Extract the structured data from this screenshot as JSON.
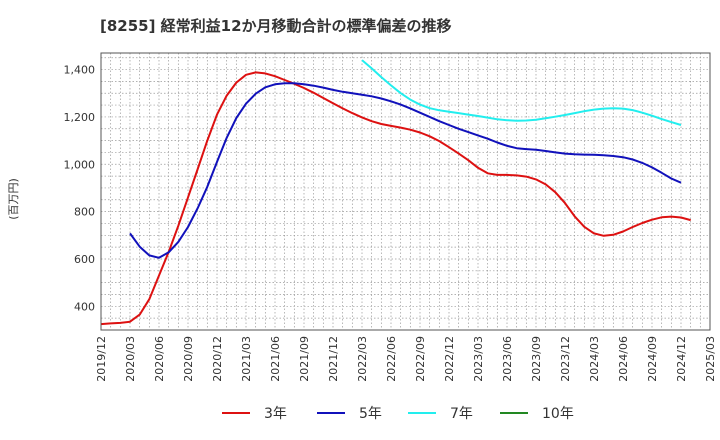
{
  "chart_data": {
    "type": "line",
    "title": "[8255]  経常利益12か月移動合計の標準偏差の推移",
    "ylabel": "(百万円)",
    "ylim": [
      300,
      1470
    ],
    "yticks": [
      400,
      600,
      800,
      1000,
      1200,
      1400
    ],
    "ytick_labels": [
      "400",
      "600",
      "800",
      "1,000",
      "1,200",
      "1,400"
    ],
    "xlim": [
      "2019-12",
      "2025-03"
    ],
    "xticks": [
      "2019/12",
      "2020/03",
      "2020/06",
      "2020/09",
      "2020/12",
      "2021/03",
      "2021/06",
      "2021/09",
      "2021/12",
      "2022/03",
      "2022/06",
      "2022/09",
      "2022/12",
      "2023/03",
      "2023/06",
      "2023/09",
      "2023/12",
      "2024/03",
      "2024/06",
      "2024/09",
      "2024/12",
      "2025/03"
    ],
    "grid": true,
    "legend_position": "bottom",
    "series": [
      {
        "name": "3年",
        "color": "#dd1111",
        "points": [
          [
            "2019-12",
            325
          ],
          [
            "2020-01",
            328
          ],
          [
            "2020-02",
            330
          ],
          [
            "2020-03",
            335
          ],
          [
            "2020-04",
            365
          ],
          [
            "2020-05",
            430
          ],
          [
            "2020-06",
            530
          ],
          [
            "2020-07",
            630
          ],
          [
            "2020-08",
            740
          ],
          [
            "2020-09",
            860
          ],
          [
            "2020-10",
            980
          ],
          [
            "2020-11",
            1100
          ],
          [
            "2020-12",
            1210
          ],
          [
            "2021-01",
            1290
          ],
          [
            "2021-02",
            1345
          ],
          [
            "2021-03",
            1378
          ],
          [
            "2021-04",
            1388
          ],
          [
            "2021-05",
            1384
          ],
          [
            "2021-06",
            1372
          ],
          [
            "2021-07",
            1356
          ],
          [
            "2021-08",
            1340
          ],
          [
            "2021-09",
            1322
          ],
          [
            "2021-10",
            1302
          ],
          [
            "2021-11",
            1280
          ],
          [
            "2021-12",
            1258
          ],
          [
            "2022-01",
            1236
          ],
          [
            "2022-02",
            1216
          ],
          [
            "2022-03",
            1198
          ],
          [
            "2022-04",
            1182
          ],
          [
            "2022-05",
            1170
          ],
          [
            "2022-06",
            1162
          ],
          [
            "2022-07",
            1155
          ],
          [
            "2022-08",
            1146
          ],
          [
            "2022-09",
            1134
          ],
          [
            "2022-10",
            1118
          ],
          [
            "2022-11",
            1098
          ],
          [
            "2022-12",
            1072
          ],
          [
            "2023-01",
            1045
          ],
          [
            "2023-02",
            1017
          ],
          [
            "2023-03",
            985
          ],
          [
            "2023-04",
            962
          ],
          [
            "2023-05",
            955
          ],
          [
            "2023-06",
            955
          ],
          [
            "2023-07",
            953
          ],
          [
            "2023-08",
            948
          ],
          [
            "2023-09",
            936
          ],
          [
            "2023-10",
            915
          ],
          [
            "2023-11",
            882
          ],
          [
            "2023-12",
            836
          ],
          [
            "2024-01",
            780
          ],
          [
            "2024-02",
            736
          ],
          [
            "2024-03",
            708
          ],
          [
            "2024-04",
            698
          ],
          [
            "2024-05",
            702
          ],
          [
            "2024-06",
            716
          ],
          [
            "2024-07",
            735
          ],
          [
            "2024-08",
            752
          ],
          [
            "2024-09",
            766
          ],
          [
            "2024-10",
            776
          ],
          [
            "2024-11",
            779
          ],
          [
            "2024-12",
            775
          ],
          [
            "2025-01",
            764
          ]
        ]
      },
      {
        "name": "5年",
        "color": "#1111bb",
        "points": [
          [
            "2020-03",
            708
          ],
          [
            "2020-04",
            652
          ],
          [
            "2020-05",
            615
          ],
          [
            "2020-06",
            605
          ],
          [
            "2020-07",
            628
          ],
          [
            "2020-08",
            672
          ],
          [
            "2020-09",
            735
          ],
          [
            "2020-10",
            815
          ],
          [
            "2020-11",
            905
          ],
          [
            "2020-12",
            1010
          ],
          [
            "2021-01",
            1112
          ],
          [
            "2021-02",
            1195
          ],
          [
            "2021-03",
            1256
          ],
          [
            "2021-04",
            1298
          ],
          [
            "2021-05",
            1325
          ],
          [
            "2021-06",
            1338
          ],
          [
            "2021-07",
            1342
          ],
          [
            "2021-08",
            1342
          ],
          [
            "2021-09",
            1338
          ],
          [
            "2021-10",
            1332
          ],
          [
            "2021-11",
            1324
          ],
          [
            "2021-12",
            1314
          ],
          [
            "2022-01",
            1306
          ],
          [
            "2022-02",
            1300
          ],
          [
            "2022-03",
            1294
          ],
          [
            "2022-04",
            1287
          ],
          [
            "2022-05",
            1278
          ],
          [
            "2022-06",
            1266
          ],
          [
            "2022-07",
            1252
          ],
          [
            "2022-08",
            1236
          ],
          [
            "2022-09",
            1218
          ],
          [
            "2022-10",
            1200
          ],
          [
            "2022-11",
            1182
          ],
          [
            "2022-12",
            1166
          ],
          [
            "2023-01",
            1150
          ],
          [
            "2023-02",
            1136
          ],
          [
            "2023-03",
            1122
          ],
          [
            "2023-04",
            1108
          ],
          [
            "2023-05",
            1092
          ],
          [
            "2023-06",
            1078
          ],
          [
            "2023-07",
            1068
          ],
          [
            "2023-08",
            1064
          ],
          [
            "2023-09",
            1061
          ],
          [
            "2023-10",
            1056
          ],
          [
            "2023-11",
            1050
          ],
          [
            "2023-12",
            1045
          ],
          [
            "2024-01",
            1042
          ],
          [
            "2024-02",
            1041
          ],
          [
            "2024-03",
            1040
          ],
          [
            "2024-04",
            1038
          ],
          [
            "2024-05",
            1035
          ],
          [
            "2024-06",
            1030
          ],
          [
            "2024-07",
            1020
          ],
          [
            "2024-08",
            1006
          ],
          [
            "2024-09",
            987
          ],
          [
            "2024-10",
            964
          ],
          [
            "2024-11",
            940
          ],
          [
            "2024-12",
            922
          ]
        ]
      },
      {
        "name": "7年",
        "color": "#22eeee",
        "points": [
          [
            "2022-03",
            1440
          ],
          [
            "2022-04",
            1405
          ],
          [
            "2022-05",
            1368
          ],
          [
            "2022-06",
            1333
          ],
          [
            "2022-07",
            1300
          ],
          [
            "2022-08",
            1273
          ],
          [
            "2022-09",
            1252
          ],
          [
            "2022-10",
            1237
          ],
          [
            "2022-11",
            1228
          ],
          [
            "2022-12",
            1222
          ],
          [
            "2023-01",
            1216
          ],
          [
            "2023-02",
            1210
          ],
          [
            "2023-03",
            1204
          ],
          [
            "2023-04",
            1197
          ],
          [
            "2023-05",
            1190
          ],
          [
            "2023-06",
            1186
          ],
          [
            "2023-07",
            1184
          ],
          [
            "2023-08",
            1185
          ],
          [
            "2023-09",
            1188
          ],
          [
            "2023-10",
            1194
          ],
          [
            "2023-11",
            1201
          ],
          [
            "2023-12",
            1208
          ],
          [
            "2024-01",
            1216
          ],
          [
            "2024-02",
            1224
          ],
          [
            "2024-03",
            1231
          ],
          [
            "2024-04",
            1235
          ],
          [
            "2024-05",
            1237
          ],
          [
            "2024-06",
            1235
          ],
          [
            "2024-07",
            1229
          ],
          [
            "2024-08",
            1218
          ],
          [
            "2024-09",
            1205
          ],
          [
            "2024-10",
            1191
          ],
          [
            "2024-11",
            1178
          ],
          [
            "2024-12",
            1166
          ]
        ]
      },
      {
        "name": "10年",
        "color": "#228822",
        "points": []
      }
    ]
  }
}
